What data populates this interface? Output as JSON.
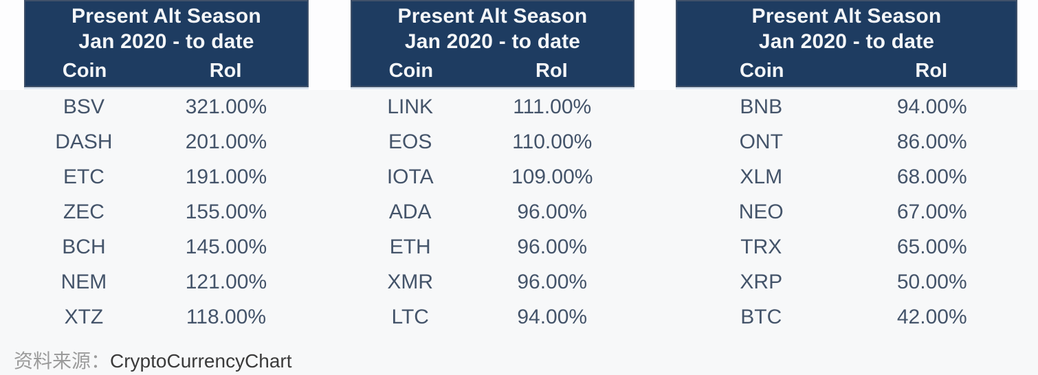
{
  "page": {
    "source_prefix": "资料来源：",
    "source_name": "CryptoCurrencyChart"
  },
  "colors": {
    "header_bg": "#1e3c61",
    "header_border": "#40516a",
    "header_text": "#f4f6f8",
    "row_text": "#44546a",
    "header_underline": "#dbe5f0",
    "source_prefix_color": "#9b9b9b",
    "source_name_color": "#3a3a3a"
  },
  "tables": [
    {
      "title_line1": "Present Alt Season",
      "title_line2": "Jan 2020 - to date",
      "columns": {
        "coin": "Coin",
        "roi": "RoI"
      },
      "rows": [
        {
          "coin": "BSV",
          "roi": "321.00%"
        },
        {
          "coin": "DASH",
          "roi": "201.00%"
        },
        {
          "coin": "ETC",
          "roi": "191.00%"
        },
        {
          "coin": "ZEC",
          "roi": "155.00%"
        },
        {
          "coin": "BCH",
          "roi": "145.00%"
        },
        {
          "coin": "NEM",
          "roi": "121.00%"
        },
        {
          "coin": "XTZ",
          "roi": "118.00%"
        }
      ]
    },
    {
      "title_line1": "Present Alt Season",
      "title_line2": "Jan 2020 - to date",
      "columns": {
        "coin": "Coin",
        "roi": "RoI"
      },
      "rows": [
        {
          "coin": "LINK",
          "roi": "111.00%"
        },
        {
          "coin": "EOS",
          "roi": "110.00%"
        },
        {
          "coin": "IOTA",
          "roi": "109.00%"
        },
        {
          "coin": "ADA",
          "roi": "96.00%"
        },
        {
          "coin": "ETH",
          "roi": "96.00%"
        },
        {
          "coin": "XMR",
          "roi": "96.00%"
        },
        {
          "coin": "LTC",
          "roi": "94.00%"
        }
      ]
    },
    {
      "title_line1": "Present Alt Season",
      "title_line2": "Jan 2020 - to date",
      "columns": {
        "coin": "Coin",
        "roi": "RoI"
      },
      "rows": [
        {
          "coin": "BNB",
          "roi": "94.00%"
        },
        {
          "coin": "ONT",
          "roi": "86.00%"
        },
        {
          "coin": "XLM",
          "roi": "68.00%"
        },
        {
          "coin": "NEO",
          "roi": "67.00%"
        },
        {
          "coin": "TRX",
          "roi": "65.00%"
        },
        {
          "coin": "XRP",
          "roi": "50.00%"
        },
        {
          "coin": "BTC",
          "roi": "42.00%"
        }
      ]
    }
  ],
  "chart_data": [
    {
      "type": "table",
      "title": "Present Alt Season Jan 2020 - to date",
      "columns": [
        "Coin",
        "RoI"
      ],
      "rows": [
        [
          "BSV",
          321.0
        ],
        [
          "DASH",
          201.0
        ],
        [
          "ETC",
          191.0
        ],
        [
          "ZEC",
          155.0
        ],
        [
          "BCH",
          145.0
        ],
        [
          "NEM",
          121.0
        ],
        [
          "XTZ",
          118.0
        ]
      ],
      "roi_unit": "percent"
    },
    {
      "type": "table",
      "title": "Present Alt Season Jan 2020 - to date",
      "columns": [
        "Coin",
        "RoI"
      ],
      "rows": [
        [
          "LINK",
          111.0
        ],
        [
          "EOS",
          110.0
        ],
        [
          "IOTA",
          109.0
        ],
        [
          "ADA",
          96.0
        ],
        [
          "ETH",
          96.0
        ],
        [
          "XMR",
          96.0
        ],
        [
          "LTC",
          94.0
        ]
      ],
      "roi_unit": "percent"
    },
    {
      "type": "table",
      "title": "Present Alt Season Jan 2020 - to date",
      "columns": [
        "Coin",
        "RoI"
      ],
      "rows": [
        [
          "BNB",
          94.0
        ],
        [
          "ONT",
          86.0
        ],
        [
          "XLM",
          68.0
        ],
        [
          "NEO",
          67.0
        ],
        [
          "TRX",
          65.0
        ],
        [
          "XRP",
          50.0
        ],
        [
          "BTC",
          42.0
        ]
      ],
      "roi_unit": "percent"
    }
  ]
}
